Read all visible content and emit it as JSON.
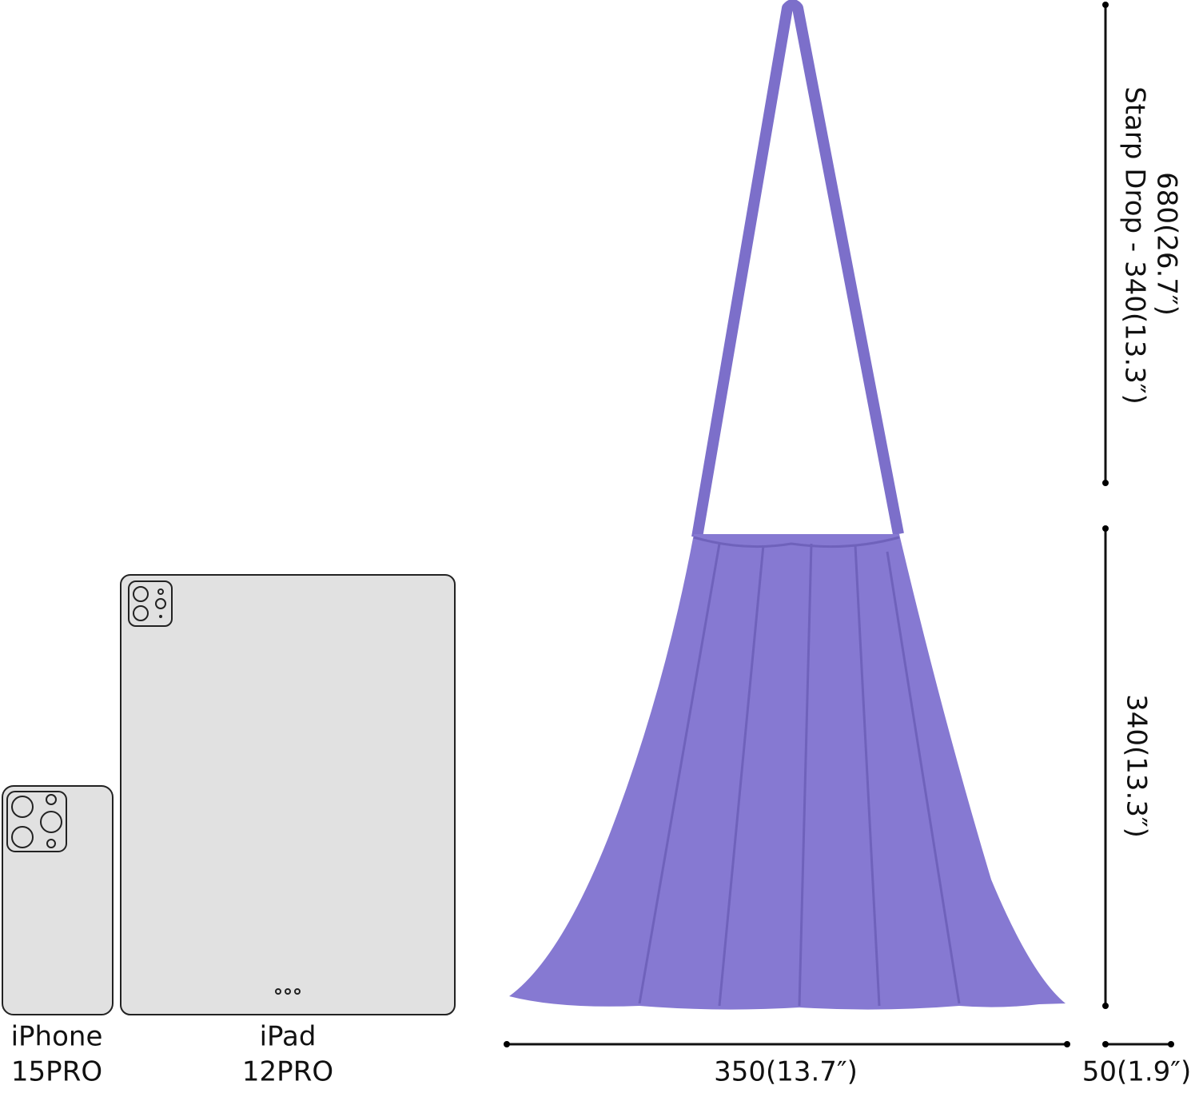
{
  "dimensions": {
    "strap_drop": {
      "total": "680(26.7″)",
      "label": "Starp Drop - 340(13.3″)"
    },
    "height": "340(13.3″)",
    "width": "350(13.7″)",
    "depth": "50(1.9″)"
  },
  "devices": [
    {
      "name": "iPhone",
      "model": "15PRO"
    },
    {
      "name": "iPad",
      "model": "12PRO"
    }
  ]
}
